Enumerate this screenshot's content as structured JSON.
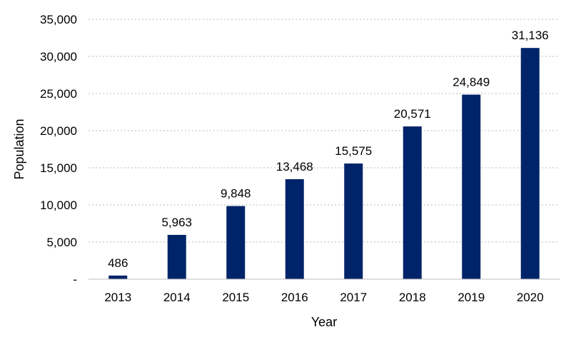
{
  "chart_data": {
    "type": "bar",
    "categories": [
      "2013",
      "2014",
      "2015",
      "2016",
      "2017",
      "2018",
      "2019",
      "2020"
    ],
    "values": [
      486,
      5963,
      9848,
      13468,
      15575,
      20571,
      24849,
      31136
    ],
    "data_labels": [
      "486",
      "5,963",
      "9,848",
      "13,468",
      "15,575",
      "20,571",
      "24,849",
      "31,136"
    ],
    "title": "",
    "xlabel": "Year",
    "ylabel": "Population",
    "ylim": [
      0,
      35000
    ],
    "yticks": [
      0,
      5000,
      10000,
      15000,
      20000,
      25000,
      30000,
      35000
    ],
    "ytick_labels": [
      "-",
      "5,000",
      "10,000",
      "15,000",
      "20,000",
      "25,000",
      "30,000",
      "35,000"
    ],
    "grid": "horizontal dotted",
    "legend": "none",
    "colors": {
      "bar": "#002469",
      "grid": "#c8c8c8",
      "text": "#000000"
    }
  }
}
